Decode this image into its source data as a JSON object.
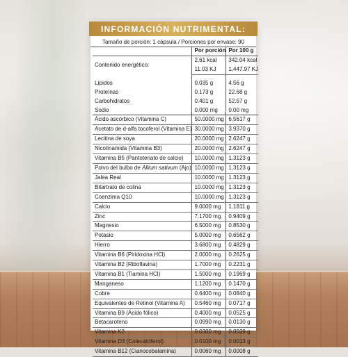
{
  "panel": {
    "title": "INFORMACIÓN NUTRIMENTAL:",
    "serving": "Tamaño de porción: 1 cápsula / Porciones por envase: 90",
    "columns": [
      "Por porción",
      "Por 100 g"
    ]
  },
  "energy": {
    "label": "Contenido energético:",
    "per_serving": [
      "2.61 kcal",
      "11.03 KJ"
    ],
    "per_100g": [
      "342.04 kcal",
      "1,447.97 KJ"
    ]
  },
  "macros": [
    {
      "name": "Lípidos",
      "per_serving": "0.035 g",
      "per_100g": "4.56 g"
    },
    {
      "name": "Proteínas",
      "per_serving": "0.173 g",
      "per_100g": "22.68 g"
    },
    {
      "name": "Carbohidratos",
      "per_serving": "0.401 g",
      "per_100g": "52.57 g"
    },
    {
      "name": "Sodio",
      "per_serving": "0.000 mg",
      "per_100g": "0.00 mg"
    }
  ],
  "nutrients": [
    {
      "name": "Ácido ascórbico (Vitamina C)",
      "per_serving": "50.0000 mg",
      "per_100g": "6.5617 g"
    },
    {
      "name": "Acetato de d-alfa tocoferol (Vitamina E)",
      "per_serving": "30.0000 mg",
      "per_100g": "3.9370 g"
    },
    {
      "name": "Lecitina de soya",
      "per_serving": "20.0000 mg",
      "per_100g": "2.6247 g"
    },
    {
      "name": "Nicotinamida (Vitamina B3)",
      "per_serving": "20.0000 mg",
      "per_100g": "2.6247 g"
    },
    {
      "name": "Vitamina B5 (Pantotenato de calcio)",
      "per_serving": "10.0000 mg",
      "per_100g": "1.3123 g"
    },
    {
      "name_prefix": "Polvo del bulbo de ",
      "name_italic": "Allium sativum",
      "name_suffix": " (Ajo)",
      "per_serving": "10.0000 mg",
      "per_100g": "1.3123 g"
    },
    {
      "name": "Jalea Real",
      "per_serving": "10.0000 mg",
      "per_100g": "1.3123 g"
    },
    {
      "name": "Bitartrato de colina",
      "per_serving": "10.0000 mg",
      "per_100g": "1.3123 g"
    },
    {
      "name": "Coenzima Q10",
      "per_serving": "10.0000 mg",
      "per_100g": "1.3123 g"
    },
    {
      "name": "Calcio",
      "per_serving": "9.0000 mg",
      "per_100g": "1.1811 g"
    },
    {
      "name": "Zinc",
      "per_serving": "7.1700 mg",
      "per_100g": "0.9409 g"
    },
    {
      "name": "Magnesio",
      "per_serving": "6.5000 mg",
      "per_100g": "0.8530 g"
    },
    {
      "name": "Potasio",
      "per_serving": "5.0000 mg",
      "per_100g": "0.6562 g"
    },
    {
      "name": "Hierro",
      "per_serving": "3.6800 mg",
      "per_100g": "0.4829 g"
    },
    {
      "name": "Vitamina B6 (Piridoxina HCl)",
      "per_serving": "2.0000 mg",
      "per_100g": "0.2625 g"
    },
    {
      "name": "Vitamina B2 (Riboflavina)",
      "per_serving": "1.7000 mg",
      "per_100g": "0.2231 g"
    },
    {
      "name": "Vitamina B1 (Tiamina HCl)",
      "per_serving": "1.5000 mg",
      "per_100g": "0.1969 g"
    },
    {
      "name": "Manganeso",
      "per_serving": "1.1200 mg",
      "per_100g": "0.1470 g"
    },
    {
      "name": "Cobre",
      "per_serving": "0.6400 mg",
      "per_100g": "0.0840 g"
    },
    {
      "name": "Equivalentes de Retinol (Vitamina A)",
      "per_serving": "0.5460 mg",
      "per_100g": "0.0717 g"
    },
    {
      "name": "Vitamina B9 (Ácido fólico)",
      "per_serving": "0.4000 mg",
      "per_100g": "0.0525 g"
    },
    {
      "name": "Betacaroteno",
      "per_serving": "0.0990 mg",
      "per_100g": "0.0130 g"
    },
    {
      "name": "Vitamina K2",
      "per_serving": "0.0300 mg",
      "per_100g": "0.0039 g"
    },
    {
      "name": "Vitamina D3 (Colecalciferol)",
      "per_serving": "0.0100 mg",
      "per_100g": "0.0013 g"
    },
    {
      "name": "Vitamina B12 (Cianocobalamina)",
      "per_serving": "0.0060 mg",
      "per_100g": "0.0008 g"
    }
  ],
  "colors": {
    "header_gold": "#c79a45",
    "text": "#1a1a1a",
    "table_wood": "#a87a57"
  }
}
